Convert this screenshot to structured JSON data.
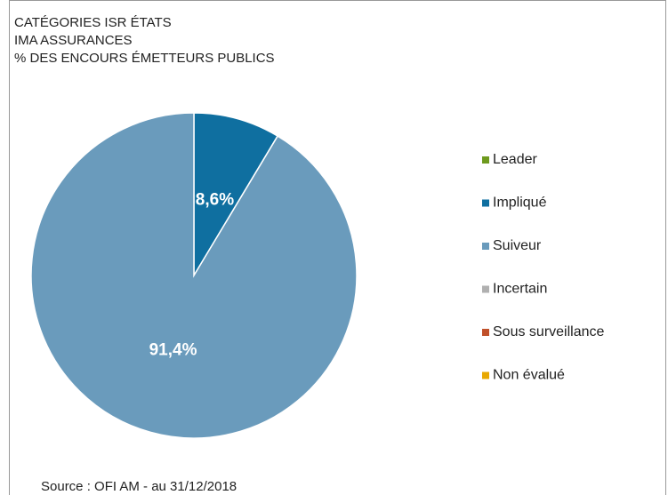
{
  "chart_data": {
    "type": "pie",
    "title": [
      "CATÉGORIES ISR ÉTATS",
      "IMA ASSURANCES",
      "% DES ENCOURS ÉMETTEURS PUBLICS"
    ],
    "categories": [
      "Leader",
      "Impliqué",
      "Suiveur",
      "Incertain",
      "Sous surveillance",
      "Non évalué"
    ],
    "values": [
      0,
      8.6,
      91.4,
      0,
      0,
      0
    ],
    "value_labels": [
      null,
      "8,6%",
      "91,4%",
      null,
      null,
      null
    ],
    "colors": [
      "#6e9a1e",
      "#0f6fa0",
      "#6a9bbc",
      "#b0b0b0",
      "#c0502a",
      "#e8a800"
    ],
    "source": "Source : OFI AM - au 31/12/2018"
  }
}
